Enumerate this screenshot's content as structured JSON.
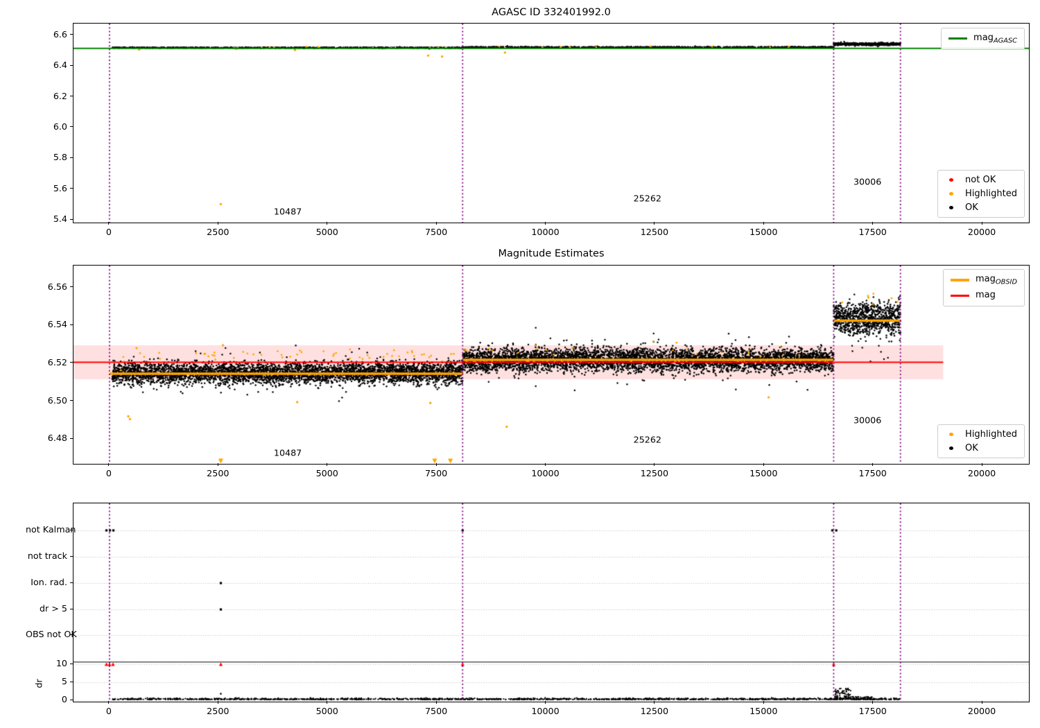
{
  "chart_data": [
    {
      "id": "agasc-mag",
      "type": "scatter",
      "title": "AGASC ID 332401992.0",
      "xlim": [
        -825,
        21063
      ],
      "ylim": [
        5.382,
        6.676
      ],
      "xticks": [
        0,
        2500,
        5000,
        7500,
        10000,
        12500,
        15000,
        17500,
        20000
      ],
      "xtick_labels": [
        "0",
        "2500",
        "5000",
        "7500",
        "10000",
        "12500",
        "15000",
        "17500",
        "20000"
      ],
      "yticks": [
        5.4,
        5.6,
        5.8,
        6.0,
        6.2,
        6.4,
        6.6
      ],
      "ytick_labels": [
        "5.4",
        "5.6",
        "5.8",
        "6.0",
        "6.2",
        "6.4",
        "6.6"
      ],
      "agasc_line": {
        "y": 6.515,
        "color": "#008000"
      },
      "boundaries": [
        0,
        8090,
        16590,
        18120
      ],
      "boundary_color": "#800080",
      "obsid_labels": [
        {
          "text": "10487",
          "x": 4100,
          "y": 5.45
        },
        {
          "text": "25262",
          "x": 12340,
          "y": 5.535
        },
        {
          "text": "30006",
          "x": 17380,
          "y": 5.645
        }
      ],
      "ok_bands": [
        {
          "x0": 60,
          "x1": 8090,
          "center": 6.519,
          "spread": 0.0028,
          "n": 950
        },
        {
          "x0": 8090,
          "x1": 16590,
          "center": 6.5225,
          "spread": 0.0028,
          "n": 1000
        },
        {
          "x0": 16590,
          "x1": 18120,
          "center": 6.5425,
          "spread": 0.0066,
          "n": 620
        }
      ],
      "highlighted_bands": [
        {
          "x0": 150,
          "x1": 8090,
          "center": 6.519,
          "spread": 0.006,
          "n": 16
        },
        {
          "x0": 8090,
          "x1": 16590,
          "center": 6.5235,
          "spread": 0.006,
          "n": 9
        }
      ],
      "highlighted_points": [
        [
          2550,
          5.502
        ],
        [
          7300,
          6.468
        ],
        [
          7620,
          6.462
        ],
        [
          9060,
          6.488
        ],
        [
          4250,
          6.504
        ],
        [
          680,
          6.507
        ]
      ],
      "legend_line": {
        "label_main": "mag",
        "label_sub": "AGASC"
      },
      "legend_markers": [
        {
          "label": "not OK",
          "color": "#ff0000"
        },
        {
          "label": "Highlighted",
          "color": "#ffa500"
        },
        {
          "label": "OK",
          "color": "#000000"
        }
      ],
      "colors": {
        "ok": "#000000",
        "highlighted": "#ffa500",
        "not_ok": "#ff0000"
      }
    },
    {
      "id": "magnitude-estimates",
      "type": "scatter",
      "title": "Magnitude Estimates",
      "xlim": [
        -825,
        21063
      ],
      "ylim": [
        6.4669,
        6.5716
      ],
      "xticks": [
        0,
        2500,
        5000,
        7500,
        10000,
        12500,
        15000,
        17500,
        20000
      ],
      "xtick_labels": [
        "0",
        "2500",
        "5000",
        "7500",
        "10000",
        "12500",
        "15000",
        "17500",
        "20000"
      ],
      "yticks": [
        6.48,
        6.5,
        6.52,
        6.54,
        6.56
      ],
      "ytick_labels": [
        "6.48",
        "6.50",
        "6.52",
        "6.54",
        "6.56"
      ],
      "mag_line": {
        "y": 6.5205,
        "x0": -825,
        "x1": 19100,
        "color": "#ff0000"
      },
      "mag_band": {
        "y0": 6.5115,
        "y1": 6.5295,
        "color": "#ff0000",
        "opacity": 0.12
      },
      "obsid_segments": [
        {
          "x0": 0,
          "x1": 8090,
          "y": 6.5145
        },
        {
          "x0": 8090,
          "x1": 16590,
          "y": 6.5218
        },
        {
          "x0": 16590,
          "x1": 18120,
          "y": 6.5425
        }
      ],
      "obsid_segment_color": "#ffa500",
      "boundaries": [
        0,
        8090,
        16590,
        18120
      ],
      "boundary_color": "#800080",
      "ok_bands": [
        {
          "x0": 60,
          "x1": 8090,
          "center": 6.5148,
          "spread": 0.0048,
          "n": 4200
        },
        {
          "x0": 8090,
          "x1": 16590,
          "center": 6.5218,
          "spread": 0.0052,
          "n": 4600
        },
        {
          "x0": 16590,
          "x1": 18120,
          "center": 6.5435,
          "spread": 0.0072,
          "n": 950
        }
      ],
      "highlighted_bands": [
        {
          "x0": 60,
          "x1": 8090,
          "center": 6.524,
          "spread": 0.003,
          "n": 55
        },
        {
          "x0": 8090,
          "x1": 16590,
          "center": 6.527,
          "spread": 0.004,
          "n": 22
        },
        {
          "x0": 16590,
          "x1": 18120,
          "center": 6.5535,
          "spread": 0.003,
          "n": 8
        }
      ],
      "highlighted_points": [
        [
          430,
          6.492
        ],
        [
          470,
          6.4905
        ],
        [
          4300,
          6.4995
        ],
        [
          7350,
          6.499
        ],
        [
          9100,
          6.4865
        ],
        [
          15100,
          6.502
        ],
        [
          2600,
          6.5295
        ],
        [
          620,
          6.528
        ]
      ],
      "offscale_low_x": [
        2550,
        7450,
        7810
      ],
      "obsid_labels": [
        {
          "text": "10487",
          "x": 4100,
          "y": 6.4725
        },
        {
          "text": "25262",
          "x": 12340,
          "y": 6.4795
        },
        {
          "text": "30006",
          "x": 17380,
          "y": 6.4895
        }
      ],
      "legend_lines": [
        {
          "label_main": "mag",
          "label_sub": "OBSID",
          "color": "#ffa500"
        },
        {
          "label_main": "mag",
          "label_sub": "",
          "color": "#ff0000"
        }
      ],
      "legend_markers": [
        {
          "label": "Highlighted",
          "color": "#ffa500"
        },
        {
          "label": "OK",
          "color": "#000000"
        }
      ],
      "colors": {
        "ok": "#000000",
        "highlighted": "#ffa500"
      }
    },
    {
      "id": "flags-and-dr",
      "type": "scatter",
      "categories": [
        "not Kalman",
        "not track",
        "Ion. rad.",
        "dr > 5",
        "OBS not OK"
      ],
      "dr_label": "dr",
      "dr_ticks": [
        10,
        5,
        0
      ],
      "dr_tick_labels": [
        "10",
        "5",
        "0"
      ],
      "xlim": [
        -825,
        21063
      ],
      "xticks": [
        0,
        2500,
        5000,
        7500,
        10000,
        12500,
        15000,
        17500,
        20000
      ],
      "xtick_labels": [
        "0",
        "2500",
        "5000",
        "7500",
        "10000",
        "12500",
        "15000",
        "17500",
        "20000"
      ],
      "boundaries": [
        0,
        8090,
        16590,
        18120
      ],
      "boundary_color": "#800080",
      "hline_dr": 10.6,
      "flag_markers": {
        "not Kalman": [
          -70,
          10,
          90,
          8090,
          16560,
          16650
        ],
        "not track": [],
        "Ion. rad.": [
          2550
        ],
        "dr > 5": [
          2550
        ],
        "OBS not OK": []
      },
      "not_ok_dr10_x": [
        -70,
        0,
        80,
        2550,
        8090,
        16590
      ],
      "dr_points": [
        [
          2550,
          1.8
        ]
      ],
      "dr_trace": {
        "x0": 60,
        "x1": 18120,
        "n": 1600,
        "base": 0.3,
        "bump_x0": 16610,
        "bump_x1": 16980,
        "bump_peak": 3.0,
        "after_x0": 16980,
        "after_x1": 17500,
        "after_level": 0.8
      },
      "colors": {
        "ok": "#000000",
        "not_ok": "#ff0000",
        "grid": "#b5b5b5"
      }
    }
  ]
}
